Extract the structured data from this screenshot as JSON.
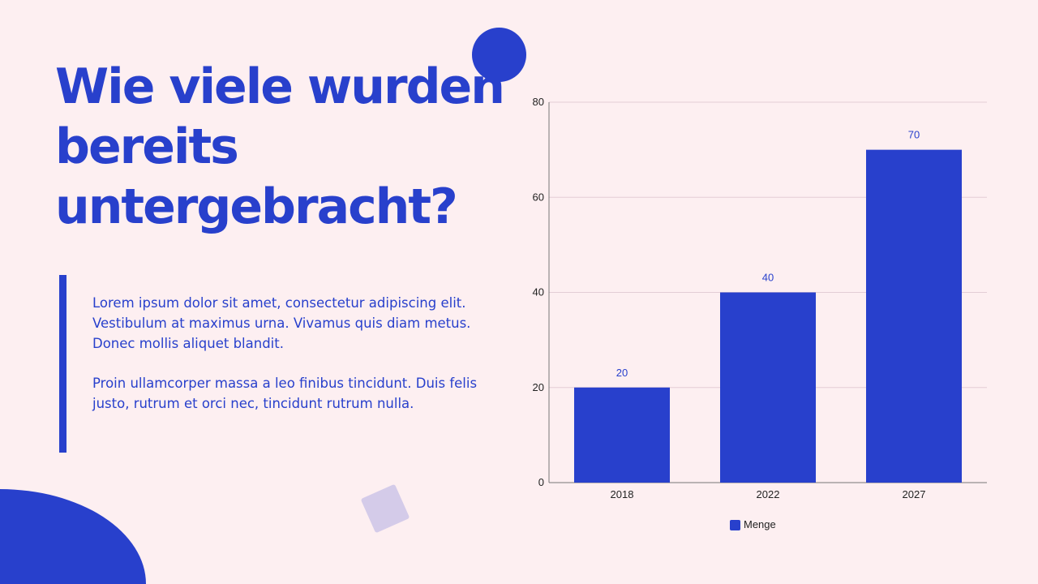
{
  "slide": {
    "title": "Wie viele wurden bereits untergebracht?",
    "paragraphs": [
      "Lorem ipsum dolor sit amet, consectetur adipiscing elit. Vestibulum at maximus urna. Vivamus quis diam metus. Donec mollis aliquet blandit.",
      "Proin ullamcorper massa a leo finibus tincidunt. Duis felis justo, rutrum et orci nec, tincidunt rutrum nulla."
    ]
  },
  "colors": {
    "background": "#fdeff1",
    "accent": "#2840cc",
    "decor_square": "#d4cbe9"
  },
  "chart_data": {
    "type": "bar",
    "categories": [
      "2018",
      "2022",
      "2027"
    ],
    "series": [
      {
        "name": "Menge",
        "values": [
          20,
          40,
          70
        ],
        "color": "#2840cc"
      }
    ],
    "ylim": [
      0,
      80
    ],
    "yticks": [
      0,
      20,
      40,
      60,
      80
    ],
    "grid": true,
    "data_labels": true,
    "legend": "bottom"
  }
}
